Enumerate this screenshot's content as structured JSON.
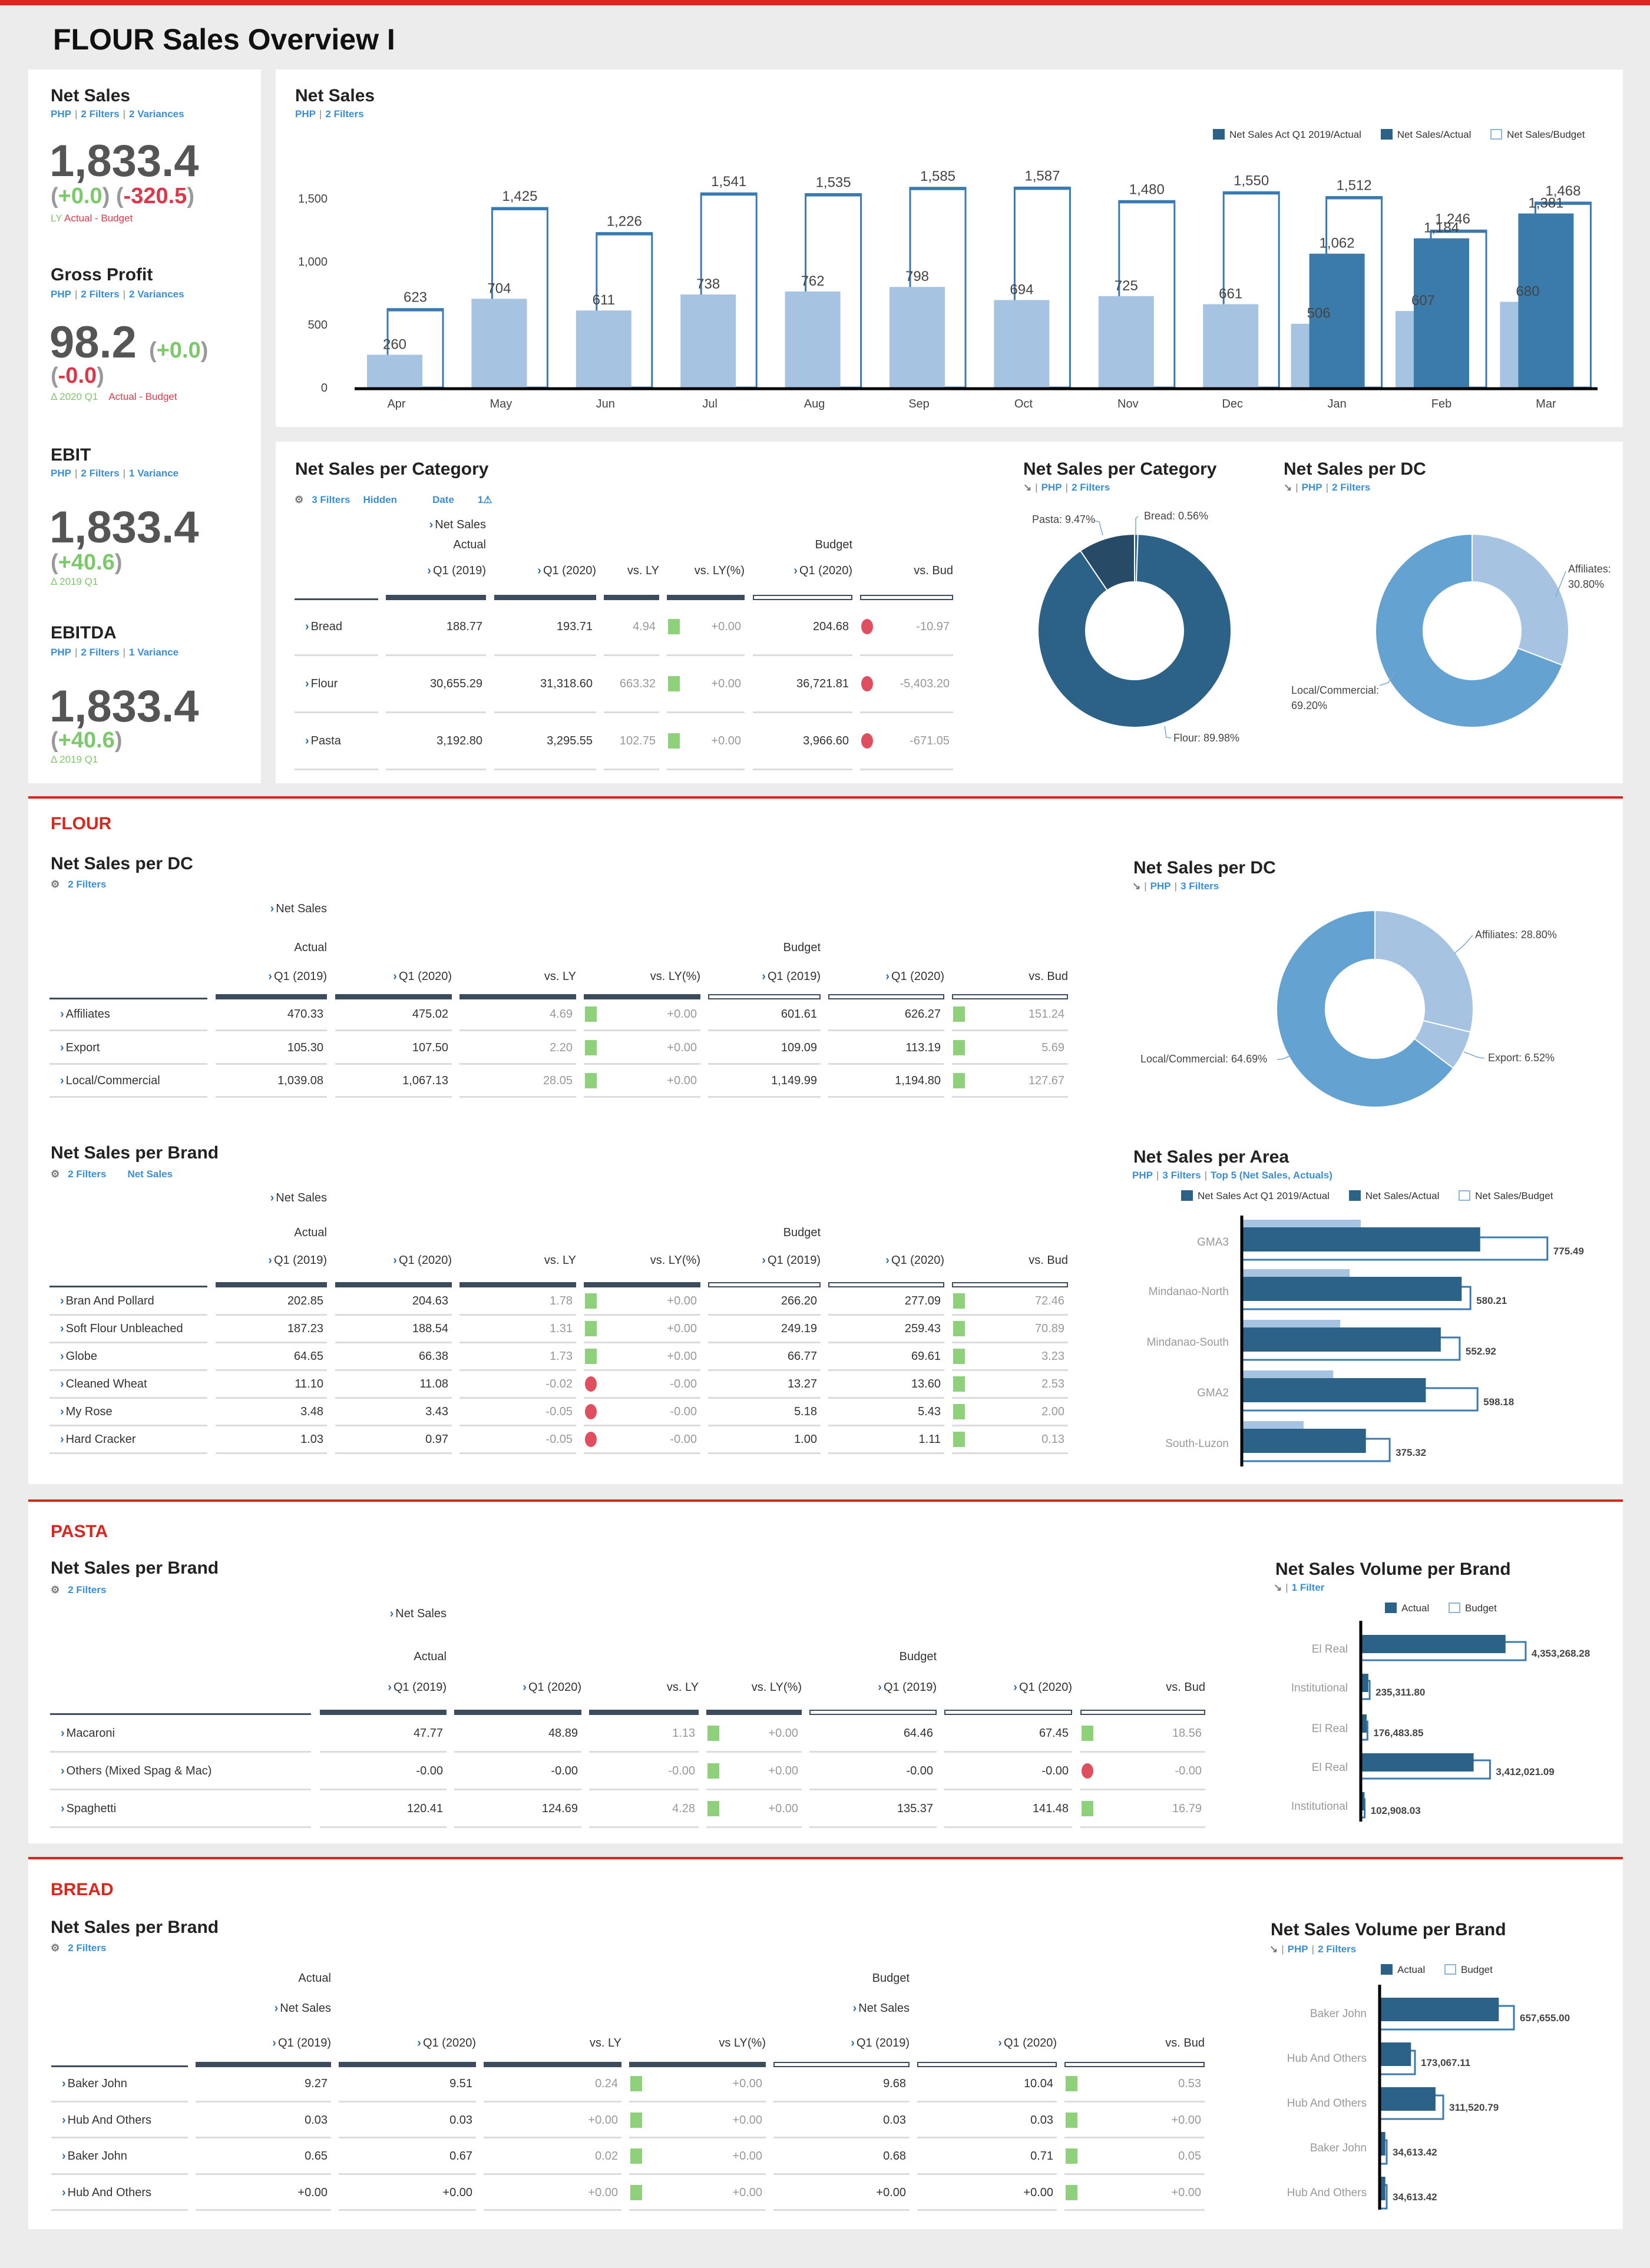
{
  "title": "FLOUR Sales Overview I",
  "colors": {
    "accent": "#d6281e",
    "link": "#3a8fd2",
    "ly": "#a6c3e1",
    "actual": "#2c6288",
    "actual_main": "#3a7bab",
    "budget": "#3a7ab0",
    "pasta_slice": "#274a66",
    "dc_main": "#64a2d2",
    "dc_light": "#a6c3e1",
    "positive": "#8fd07a",
    "negative": "#e04f5f"
  },
  "kpis": [
    {
      "title": "Net Sales",
      "meta": [
        "PHP",
        "2 Filters",
        "2 Variances"
      ],
      "value": "1,833.4",
      "var1": "+0.0",
      "var2": "-320.5",
      "foot1": "LY",
      "foot2": "Actual - Budget"
    },
    {
      "title": "Gross Profit",
      "meta": [
        "PHP",
        "2 Filters",
        "2 Variances"
      ],
      "value": "98.2",
      "var1": "+0.0",
      "var2": "-0.0",
      "foot1": "Δ 2020 Q1",
      "foot2": "Actual - Budget"
    },
    {
      "title": "EBIT",
      "meta": [
        "PHP",
        "2 Filters",
        "1 Variance"
      ],
      "value": "1,833.4",
      "var1": "+40.6",
      "foot1": "Δ 2019 Q1"
    },
    {
      "title": "EBITDA",
      "meta": [
        "PHP",
        "2 Filters",
        "1 Variance"
      ],
      "value": "1,833.4",
      "var1": "+40.6",
      "foot1": "Δ 2019 Q1"
    }
  ],
  "net_sales_card": {
    "title": "Net Sales",
    "meta": [
      "PHP",
      "2 Filters"
    ],
    "legend": [
      "Net Sales Act Q1 2019/Actual",
      "Net Sales/Actual",
      "Net Sales/Budget"
    ]
  },
  "category_card": {
    "title": "Net Sales per Category",
    "filters": [
      "3 Filters",
      "Hidden",
      "Date",
      "1"
    ]
  },
  "category_donut_card": {
    "title": "Net Sales per Category",
    "meta": [
      "PHP",
      "2 Filters"
    ]
  },
  "dc_donut_card": {
    "title": "Net Sales per DC",
    "meta": [
      "PHP",
      "2 Filters"
    ]
  },
  "sections": {
    "flour": "FLOUR",
    "pasta": "PASTA",
    "bread": "BREAD"
  },
  "flour_dc_card": {
    "title": "Net Sales per DC",
    "filters": [
      "2 Filters"
    ]
  },
  "flour_brand_card": {
    "title": "Net Sales per Brand",
    "filters": [
      "2 Filters",
      "Net Sales"
    ]
  },
  "flour_dc_donut_card": {
    "title": "Net Sales per DC",
    "meta": [
      "PHP",
      "3 Filters"
    ]
  },
  "area_card": {
    "title": "Net Sales per Area",
    "meta": [
      "PHP",
      "3 Filters",
      "Top 5 (Net Sales, Actuals)"
    ],
    "legend": [
      "Net Sales Act Q1 2019/Actual",
      "Net Sales/Actual",
      "Net Sales/Budget"
    ]
  },
  "pasta_brand_card": {
    "title": "Net Sales per Brand",
    "filters": [
      "2 Filters"
    ]
  },
  "pasta_volume_card": {
    "title": "Net Sales Volume per Brand",
    "meta": [
      "1 Filter"
    ],
    "legend": [
      "Actual",
      "Budget"
    ]
  },
  "bread_brand_card": {
    "title": "Net Sales per Brand",
    "filters": [
      "2 Filters"
    ]
  },
  "bread_volume_card": {
    "title": "Net Sales Volume per Brand",
    "meta": [
      "PHP",
      "2 Filters"
    ],
    "legend": [
      "Actual",
      "Budget"
    ]
  },
  "tables": [
    {
      "header_lines": [
        [
          {
            "col": 0,
            "text": "Net Sales",
            "chevron": true
          }
        ],
        [
          {
            "col": 0,
            "text": "Actual"
          },
          {
            "col": 4,
            "text": "Budget"
          }
        ]
      ],
      "columns": [
        {
          "label": "Q1 (2019)",
          "kind": "actual",
          "chevron": true
        },
        {
          "label": "Q1 (2020)",
          "kind": "actual",
          "chevron": true
        },
        {
          "label": "vs. LY",
          "kind": "actual"
        },
        {
          "label": "vs. LY(%)",
          "kind": "actual"
        },
        {
          "label": "Q1 (2020)",
          "kind": "budget",
          "chevron": true
        },
        {
          "label": "vs. Bud",
          "kind": "budget"
        }
      ],
      "rows": [
        {
          "label": "Bread",
          "values": [
            "188.77",
            "193.71",
            "4.94",
            "+0.00",
            "204.68",
            "-10.97"
          ],
          "ly_status": "positive",
          "bud_status": "negative"
        },
        {
          "label": "Flour",
          "values": [
            "30,655.29",
            "31,318.60",
            "663.32",
            "+0.00",
            "36,721.81",
            "-5,403.20"
          ],
          "ly_status": "positive",
          "bud_status": "negative"
        },
        {
          "label": "Pasta",
          "values": [
            "3,192.80",
            "3,295.55",
            "102.75",
            "+0.00",
            "3,966.60",
            "-671.05"
          ],
          "ly_status": "positive",
          "bud_status": "negative"
        }
      ]
    },
    {
      "header_lines": [
        [
          {
            "col": 0,
            "text": "Net Sales",
            "chevron": true
          }
        ],
        [
          {
            "col": 0,
            "text": "Actual"
          },
          {
            "col": 4,
            "text": "Budget"
          }
        ]
      ],
      "columns": [
        {
          "label": "Q1 (2019)",
          "kind": "actual",
          "chevron": true
        },
        {
          "label": "Q1 (2020)",
          "kind": "actual",
          "chevron": true
        },
        {
          "label": "vs. LY",
          "kind": "actual"
        },
        {
          "label": "vs. LY(%)",
          "kind": "actual"
        },
        {
          "label": "Q1 (2019)",
          "kind": "budget",
          "chevron": true
        },
        {
          "label": "Q1 (2020)",
          "kind": "budget",
          "chevron": true
        },
        {
          "label": "vs. Bud",
          "kind": "budget"
        }
      ],
      "rows": [
        {
          "label": "Affiliates",
          "values": [
            "470.33",
            "475.02",
            "4.69",
            "+0.00",
            "601.61",
            "626.27",
            "151.24"
          ],
          "ly_status": "positive",
          "bud_status": "positive"
        },
        {
          "label": "Export",
          "values": [
            "105.30",
            "107.50",
            "2.20",
            "+0.00",
            "109.09",
            "113.19",
            "5.69"
          ],
          "ly_status": "positive",
          "bud_status": "positive"
        },
        {
          "label": "Local/Commercial",
          "values": [
            "1,039.08",
            "1,067.13",
            "28.05",
            "+0.00",
            "1,149.99",
            "1,194.80",
            "127.67"
          ],
          "ly_status": "positive",
          "bud_status": "positive"
        }
      ]
    },
    {
      "header_lines": [
        [
          {
            "col": 0,
            "text": "Net Sales",
            "chevron": true
          }
        ],
        [
          {
            "col": 0,
            "text": "Actual"
          },
          {
            "col": 4,
            "text": "Budget"
          }
        ]
      ],
      "columns": [
        {
          "label": "Q1 (2019)",
          "kind": "actual",
          "chevron": true
        },
        {
          "label": "Q1 (2020)",
          "kind": "actual",
          "chevron": true
        },
        {
          "label": "vs. LY",
          "kind": "actual"
        },
        {
          "label": "vs. LY(%)",
          "kind": "actual"
        },
        {
          "label": "Q1 (2019)",
          "kind": "budget",
          "chevron": true
        },
        {
          "label": "Q1 (2020)",
          "kind": "budget",
          "chevron": true
        },
        {
          "label": "vs. Bud",
          "kind": "budget"
        }
      ],
      "rows": [
        {
          "label": "Bran And Pollard",
          "values": [
            "202.85",
            "204.63",
            "1.78",
            "+0.00",
            "266.20",
            "277.09",
            "72.46"
          ],
          "ly_status": "positive",
          "bud_status": "positive"
        },
        {
          "label": "Soft Flour Unbleached",
          "values": [
            "187.23",
            "188.54",
            "1.31",
            "+0.00",
            "249.19",
            "259.43",
            "70.89"
          ],
          "ly_status": "positive",
          "bud_status": "positive"
        },
        {
          "label": "Globe",
          "values": [
            "64.65",
            "66.38",
            "1.73",
            "+0.00",
            "66.77",
            "69.61",
            "3.23"
          ],
          "ly_status": "positive",
          "bud_status": "positive"
        },
        {
          "label": "Cleaned Wheat",
          "values": [
            "11.10",
            "11.08",
            "-0.02",
            "-0.00",
            "13.27",
            "13.60",
            "2.53"
          ],
          "ly_status": "negative",
          "bud_status": "positive"
        },
        {
          "label": "My Rose",
          "values": [
            "3.48",
            "3.43",
            "-0.05",
            "-0.00",
            "5.18",
            "5.43",
            "2.00"
          ],
          "ly_status": "negative",
          "bud_status": "positive"
        },
        {
          "label": "Hard Cracker",
          "values": [
            "1.03",
            "0.97",
            "-0.05",
            "-0.00",
            "1.00",
            "1.11",
            "0.13"
          ],
          "ly_status": "negative",
          "bud_status": "positive"
        }
      ]
    },
    {
      "header_lines": [
        [
          {
            "col": 0,
            "text": "Net Sales",
            "chevron": true
          }
        ],
        [
          {
            "col": 0,
            "text": "Actual"
          },
          {
            "col": 4,
            "text": "Budget"
          }
        ]
      ],
      "columns": [
        {
          "label": "Q1 (2019)",
          "kind": "actual",
          "chevron": true
        },
        {
          "label": "Q1 (2020)",
          "kind": "actual",
          "chevron": true
        },
        {
          "label": "vs. LY",
          "kind": "actual"
        },
        {
          "label": "vs. LY(%)",
          "kind": "actual"
        },
        {
          "label": "Q1 (2019)",
          "kind": "budget",
          "chevron": true
        },
        {
          "label": "Q1 (2020)",
          "kind": "budget",
          "chevron": true
        },
        {
          "label": "vs. Bud",
          "kind": "budget"
        }
      ],
      "rows": [
        {
          "label": "Macaroni",
          "values": [
            "47.77",
            "48.89",
            "1.13",
            "+0.00",
            "64.46",
            "67.45",
            "18.56"
          ],
          "ly_status": "positive",
          "bud_status": "positive"
        },
        {
          "label": "Others (Mixed Spag & Mac)",
          "values": [
            "-0.00",
            "-0.00",
            "-0.00",
            "+0.00",
            "-0.00",
            "-0.00",
            "-0.00"
          ],
          "ly_status": "positive",
          "bud_status": "negative"
        },
        {
          "label": "Spaghetti",
          "values": [
            "120.41",
            "124.69",
            "4.28",
            "+0.00",
            "135.37",
            "141.48",
            "16.79"
          ],
          "ly_status": "positive",
          "bud_status": "positive"
        }
      ]
    },
    {
      "header_lines": [
        [
          {
            "col": 0,
            "text": "Actual"
          },
          {
            "col": 4,
            "text": "Budget"
          }
        ],
        [
          {
            "col": 0,
            "text": "Net Sales",
            "chevron": true
          },
          {
            "col": 4,
            "text": "Net Sales",
            "chevron": true
          }
        ]
      ],
      "columns": [
        {
          "label": "Q1 (2019)",
          "kind": "actual",
          "chevron": true
        },
        {
          "label": "Q1 (2020)",
          "kind": "actual",
          "chevron": true
        },
        {
          "label": "vs. LY",
          "kind": "actual"
        },
        {
          "label": "vs LY(%)",
          "kind": "actual"
        },
        {
          "label": "Q1 (2019)",
          "kind": "budget",
          "chevron": true
        },
        {
          "label": "Q1 (2020)",
          "kind": "budget",
          "chevron": true
        },
        {
          "label": "vs. Bud",
          "kind": "budget"
        }
      ],
      "rows": [
        {
          "label": "Baker John",
          "values": [
            "9.27",
            "9.51",
            "0.24",
            "+0.00",
            "9.68",
            "10.04",
            "0.53"
          ],
          "ly_status": "positive",
          "bud_status": "positive"
        },
        {
          "label": "Hub And Others",
          "values": [
            "0.03",
            "0.03",
            "+0.00",
            "+0.00",
            "0.03",
            "0.03",
            "+0.00"
          ],
          "ly_status": "positive",
          "bud_status": "positive"
        },
        {
          "label": "Baker John",
          "values": [
            "0.65",
            "0.67",
            "0.02",
            "+0.00",
            "0.68",
            "0.71",
            "0.05"
          ],
          "ly_status": "positive",
          "bud_status": "positive"
        },
        {
          "label": "Hub And Others",
          "values": [
            "+0.00",
            "+0.00",
            "+0.00",
            "+0.00",
            "+0.00",
            "+0.00",
            "+0.00"
          ],
          "ly_status": "positive",
          "bud_status": "positive"
        }
      ]
    }
  ],
  "chart_data": [
    {
      "type": "bar",
      "categories": [
        "Apr",
        "May",
        "Jun",
        "Jul",
        "Aug",
        "Sep",
        "Oct",
        "Nov",
        "Dec",
        "Jan",
        "Feb",
        "Mar"
      ],
      "series": [
        {
          "name": "Net Sales Act Q1 2019/Actual",
          "values": [
            260,
            704,
            611,
            738,
            762,
            798,
            694,
            725,
            661,
            506,
            607,
            680
          ]
        },
        {
          "name": "Net Sales/Actual",
          "values": [
            null,
            null,
            null,
            null,
            null,
            null,
            null,
            null,
            null,
            1062,
            1184,
            1381
          ]
        },
        {
          "name": "Net Sales/Budget",
          "values": [
            623,
            1425,
            1226,
            1541,
            1535,
            1585,
            1587,
            1480,
            1550,
            1512,
            1246,
            1468
          ]
        }
      ],
      "yticks": [
        0,
        500,
        1000,
        1500
      ],
      "ylim": [
        0,
        1700
      ],
      "legend": "top-right",
      "grid": false
    },
    {
      "type": "pie",
      "donut": true,
      "slices": [
        {
          "label": "Bread",
          "value": 0.56,
          "display": "Bread: 0.56%"
        },
        {
          "label": "Flour",
          "value": 89.98,
          "display": "Flour: 89.98%"
        },
        {
          "label": "Pasta",
          "value": 9.47,
          "display": "Pasta: 9.47%"
        }
      ]
    },
    {
      "type": "pie",
      "donut": true,
      "slices": [
        {
          "label": "Affiliates",
          "value": 30.8,
          "display": "Affiliates:",
          "display2": "30.80%"
        },
        {
          "label": "Local/Commercial",
          "value": 69.2,
          "display": "Local/Commercial:",
          "display2": "69.20%"
        }
      ]
    },
    {
      "type": "pie",
      "donut": true,
      "slices": [
        {
          "label": "Affiliates",
          "value": 28.8,
          "display": "Affiliates: 28.80%"
        },
        {
          "label": "Export",
          "value": 6.52,
          "display": "Export: 6.52%"
        },
        {
          "label": "Local/Commercial",
          "value": 64.69,
          "display": "Local/Commercial: 64.69%"
        }
      ]
    },
    {
      "type": "bar",
      "orientation": "horizontal",
      "categories": [
        "GMA3",
        "Mindanao-North",
        "Mindanao-South",
        "GMA2",
        "South-Luzon"
      ],
      "series": [
        {
          "name": "Net Sales Act Q1 2019/Actual",
          "values": [
            302,
            274,
            250,
            232,
            157
          ]
        },
        {
          "name": "Net Sales/Actual",
          "values": [
            605,
            558,
            505,
            467,
            315
          ]
        },
        {
          "name": "Net Sales/Budget",
          "values": [
            775.49,
            580.21,
            552.92,
            598.18,
            375.32
          ]
        }
      ],
      "labeled_series": "Net Sales/Budget",
      "legend": "top"
    },
    {
      "type": "bar",
      "orientation": "horizontal",
      "categories": [
        "El Real",
        "Institutional",
        "El Real",
        "El Real",
        "Institutional"
      ],
      "series": [
        {
          "name": "Actual",
          "values": [
            3822000,
            200000,
            155000,
            2980000,
            100000
          ]
        },
        {
          "name": "Budget",
          "values": [
            4353268.28,
            235311.8,
            176483.85,
            3412021.09,
            102908.03
          ]
        }
      ],
      "labeled_series": "Budget",
      "legend": "top"
    },
    {
      "type": "bar",
      "orientation": "horizontal",
      "categories": [
        "Baker John",
        "Hub And Others",
        "Hub And Others",
        "Baker John",
        "Hub And Others"
      ],
      "series": [
        {
          "name": "Actual",
          "values": [
            583600,
            153700,
            273800,
            28000,
            28000
          ]
        },
        {
          "name": "Budget",
          "values": [
            657655.0,
            173067.11,
            311520.79,
            34613.42,
            34613.42
          ]
        }
      ],
      "labeled_series": "Budget",
      "legend": "top"
    }
  ]
}
